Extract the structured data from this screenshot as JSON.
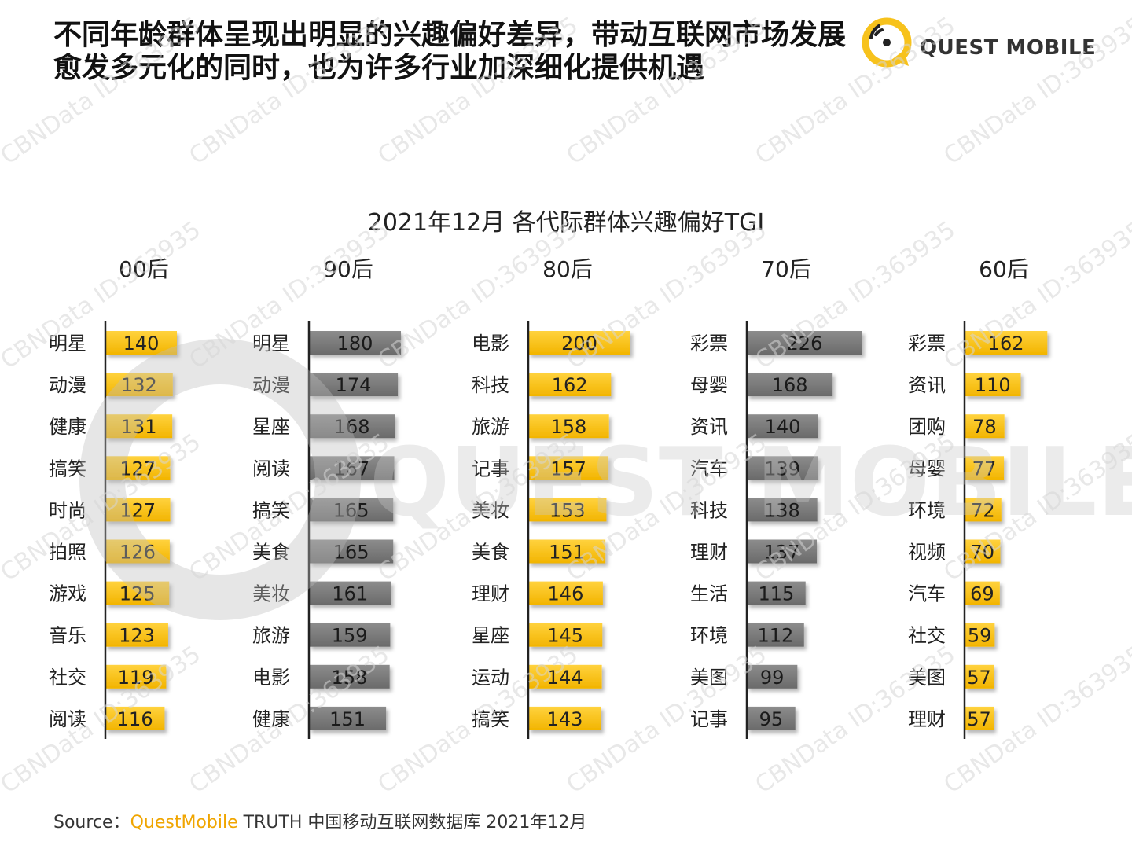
{
  "headline": {
    "line1": "不同年龄群体呈现出明显的兴趣偏好差异，带动互联网市场发展",
    "line2": "愈发多元化的同时，也为许多行业加深细化提供机遇"
  },
  "logo": {
    "text": "QUEST MOBILE"
  },
  "watermark": {
    "id_text": "CBNData ID:363935",
    "center_text": "QUEST MOBILE"
  },
  "source": {
    "prefix": "Source：",
    "brand": "QuestMobile",
    "rest": " TRUTH 中国移动互联网数据库 2021年12月"
  },
  "colors": {
    "yellow": "#f7c21c",
    "gray": "#7a7a7a",
    "axis": "#222222"
  },
  "chart_data": {
    "type": "bar",
    "orientation": "horizontal",
    "title": "2021年12月 各代际群体兴趣偏好TGI",
    "panels": [
      {
        "name": "00后",
        "color": "yellow",
        "categories": [
          "明星",
          "动漫",
          "健康",
          "搞笑",
          "时尚",
          "拍照",
          "游戏",
          "音乐",
          "社交",
          "阅读"
        ],
        "values": [
          140,
          132,
          131,
          127,
          127,
          126,
          125,
          123,
          119,
          116
        ]
      },
      {
        "name": "90后",
        "color": "gray",
        "categories": [
          "明星",
          "动漫",
          "星座",
          "阅读",
          "搞笑",
          "美食",
          "美妆",
          "旅游",
          "电影",
          "健康"
        ],
        "values": [
          180,
          174,
          168,
          167,
          165,
          165,
          161,
          159,
          158,
          151
        ]
      },
      {
        "name": "80后",
        "color": "yellow",
        "categories": [
          "电影",
          "科技",
          "旅游",
          "记事",
          "美妆",
          "美食",
          "理财",
          "星座",
          "运动",
          "搞笑"
        ],
        "values": [
          200,
          162,
          158,
          157,
          153,
          151,
          146,
          145,
          144,
          143
        ]
      },
      {
        "name": "70后",
        "color": "gray",
        "categories": [
          "彩票",
          "母婴",
          "资讯",
          "汽车",
          "科技",
          "理财",
          "生活",
          "环境",
          "美图",
          "记事"
        ],
        "values": [
          226,
          168,
          140,
          139,
          138,
          137,
          115,
          112,
          99,
          95
        ]
      },
      {
        "name": "60后",
        "color": "yellow",
        "categories": [
          "彩票",
          "资讯",
          "团购",
          "母婴",
          "环境",
          "视频",
          "汽车",
          "社交",
          "美图",
          "理财"
        ],
        "values": [
          162,
          110,
          78,
          77,
          72,
          70,
          69,
          59,
          57,
          57
        ]
      }
    ]
  }
}
